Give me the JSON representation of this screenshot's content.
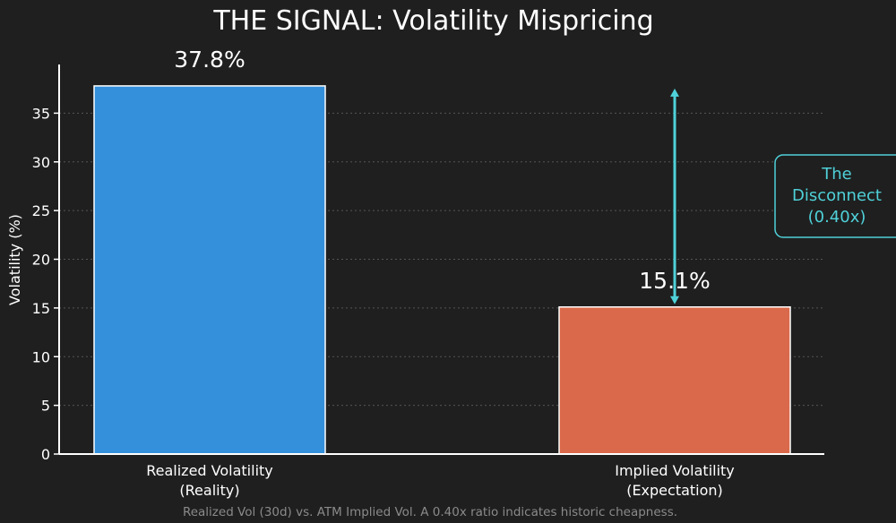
{
  "chart_data": {
    "type": "bar",
    "title": "THE SIGNAL: Volatility Mispricing",
    "ylabel": "Volatility (%)",
    "xlabel": "",
    "ylim": [
      0,
      40
    ],
    "yticks": [
      0,
      5,
      10,
      15,
      20,
      25,
      30,
      35
    ],
    "grid": "horizontal dotted",
    "categories": [
      [
        "Realized Volatility",
        "(Reality)"
      ],
      [
        "Implied Volatility",
        "(Expectation)"
      ]
    ],
    "values": [
      37.8,
      15.1
    ],
    "data_labels": [
      "37.8%",
      "15.1%"
    ],
    "colors": [
      "#3590dc",
      "#d9694a"
    ],
    "annotation": {
      "lines": [
        "The",
        "Disconnect",
        "(0.40x)"
      ],
      "color": "#4fd1d9",
      "arrow_from": 37.8,
      "arrow_to": 15.1
    },
    "caption": "Realized Vol (30d) vs. ATM Implied Vol. A 0.40x ratio indicates historic cheapness."
  }
}
